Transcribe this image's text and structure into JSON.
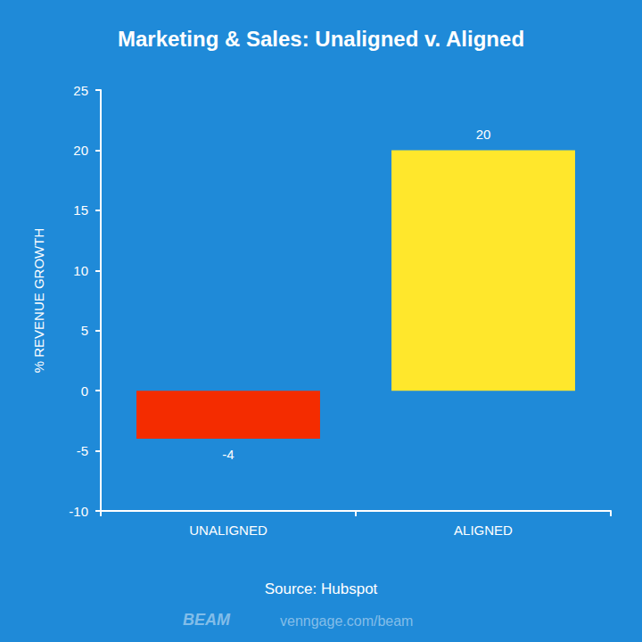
{
  "chart_data": {
    "type": "bar",
    "title": "Marketing & Sales: Unaligned v. Aligned",
    "y_label": "% REVENUE GROWTH",
    "categories": [
      "UNALIGNED",
      "ALIGNED"
    ],
    "values": [
      -4,
      20
    ],
    "colors": [
      "#f42c00",
      "#ffe72c"
    ],
    "ylim": [
      -10,
      25
    ],
    "yticks": [
      -10,
      -5,
      0,
      5,
      10,
      15,
      20,
      25
    ],
    "grid": false,
    "data_labels": true,
    "annotations": [
      "Source: Hubspot",
      "BEAM",
      "venngage.com/beam"
    ]
  }
}
